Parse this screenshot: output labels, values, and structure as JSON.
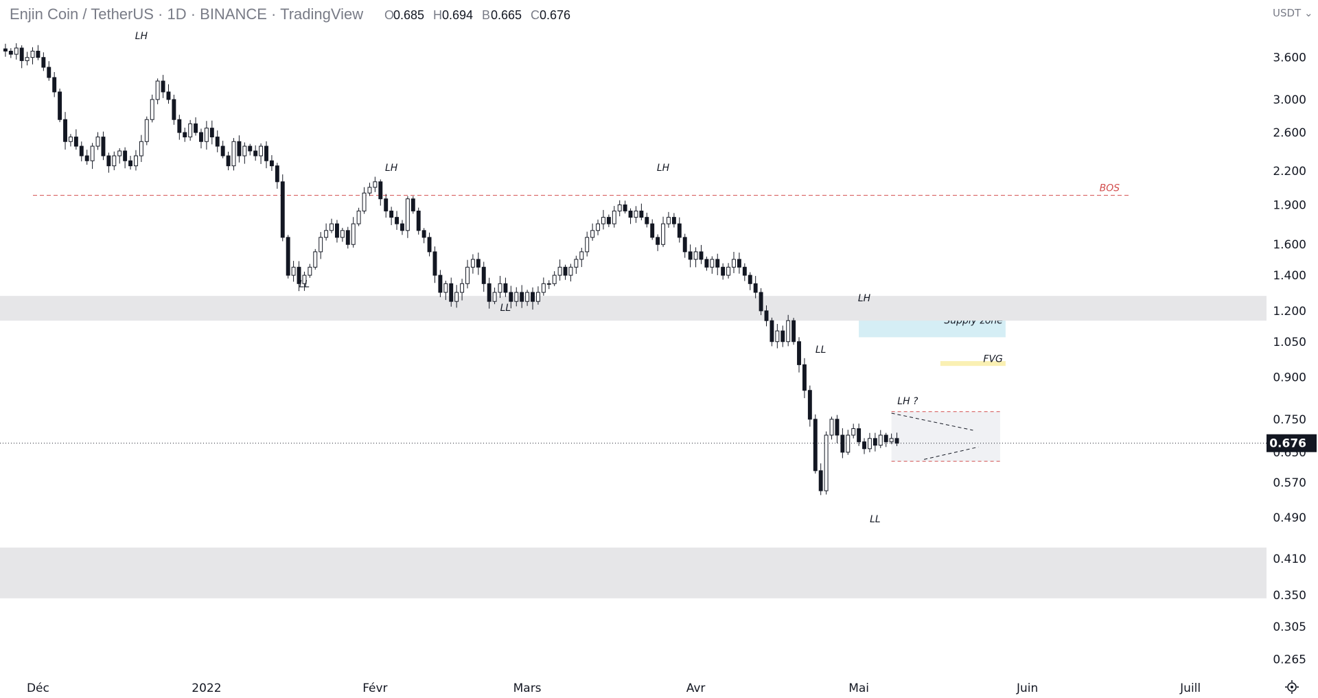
{
  "header": {
    "title": "Enjin Coin / TetherUS · 1D · BINANCE · TradingView",
    "ohlc": [
      {
        "key": "O",
        "value": "0.685"
      },
      {
        "key": "H",
        "value": "0.694"
      },
      {
        "key": "B",
        "value": "0.665"
      },
      {
        "key": "C",
        "value": "0.676"
      }
    ]
  },
  "currency_label": "USDT",
  "last_price_label": "0.676",
  "chart_data": {
    "type": "candlestick",
    "symbol": "ENJUSDT",
    "exchange": "BINANCE",
    "interval": "1D",
    "y_scale": "log",
    "ylim": [
      0.25,
      4.1
    ],
    "y_ticks": [
      {
        "label": "3.600",
        "value": 3.6
      },
      {
        "label": "3.000",
        "value": 3.0
      },
      {
        "label": "2.600",
        "value": 2.6
      },
      {
        "label": "2.200",
        "value": 2.2
      },
      {
        "label": "1.900",
        "value": 1.9
      },
      {
        "label": "1.600",
        "value": 1.6
      },
      {
        "label": "1.400",
        "value": 1.4
      },
      {
        "label": "1.200",
        "value": 1.2
      },
      {
        "label": "1.050",
        "value": 1.05
      },
      {
        "label": "0.900",
        "value": 0.9
      },
      {
        "label": "0.750",
        "value": 0.75
      },
      {
        "label": "0.650",
        "value": 0.65
      },
      {
        "label": "0.570",
        "value": 0.57
      },
      {
        "label": "0.490",
        "value": 0.49
      },
      {
        "label": "0.410",
        "value": 0.41
      },
      {
        "label": "0.350",
        "value": 0.35
      },
      {
        "label": "0.305",
        "value": 0.305
      },
      {
        "label": "0.265",
        "value": 0.265
      }
    ],
    "x_ticks": [
      {
        "label": "Déc",
        "index": 0
      },
      {
        "label": "2022",
        "index": 31
      },
      {
        "label": "Févr",
        "index": 62
      },
      {
        "label": "Mars",
        "index": 90
      },
      {
        "label": "Avr",
        "index": 121
      },
      {
        "label": "Mai",
        "index": 151
      },
      {
        "label": "Juin",
        "index": 182
      },
      {
        "label": "Juill",
        "index": 212
      }
    ],
    "x_range": [
      -7,
      226
    ],
    "start_index": -6,
    "close_series": [
      3.7,
      3.65,
      3.75,
      3.55,
      3.6,
      3.7,
      3.6,
      3.45,
      3.3,
      3.1,
      2.75,
      2.5,
      2.55,
      2.45,
      2.35,
      2.3,
      2.45,
      2.55,
      2.35,
      2.25,
      2.35,
      2.4,
      2.3,
      2.25,
      2.35,
      2.5,
      2.75,
      3.0,
      3.25,
      3.1,
      3.0,
      2.75,
      2.6,
      2.55,
      2.7,
      2.6,
      2.5,
      2.65,
      2.55,
      2.45,
      2.35,
      2.25,
      2.5,
      2.35,
      2.45,
      2.4,
      2.35,
      2.45,
      2.3,
      2.25,
      2.1,
      1.65,
      1.4,
      1.45,
      1.35,
      1.4,
      1.45,
      1.55,
      1.65,
      1.7,
      1.75,
      1.65,
      1.7,
      1.6,
      1.75,
      1.85,
      2.0,
      2.05,
      2.1,
      1.95,
      1.85,
      1.8,
      1.75,
      1.7,
      1.95,
      1.85,
      1.7,
      1.65,
      1.55,
      1.4,
      1.3,
      1.35,
      1.25,
      1.3,
      1.35,
      1.45,
      1.5,
      1.45,
      1.35,
      1.25,
      1.3,
      1.35,
      1.3,
      1.25,
      1.3,
      1.25,
      1.3,
      1.25,
      1.3,
      1.35,
      1.35,
      1.4,
      1.45,
      1.4,
      1.45,
      1.5,
      1.55,
      1.65,
      1.7,
      1.75,
      1.8,
      1.75,
      1.85,
      1.9,
      1.85,
      1.8,
      1.85,
      1.8,
      1.75,
      1.65,
      1.6,
      1.75,
      1.8,
      1.75,
      1.65,
      1.55,
      1.5,
      1.55,
      1.5,
      1.45,
      1.5,
      1.45,
      1.4,
      1.45,
      1.5,
      1.45,
      1.4,
      1.35,
      1.3,
      1.2,
      1.15,
      1.05,
      1.1,
      1.05,
      1.15,
      1.05,
      0.95,
      0.85,
      0.75,
      0.6,
      0.55,
      0.7,
      0.75,
      0.7,
      0.65,
      0.7,
      0.72,
      0.68,
      0.66,
      0.69,
      0.67,
      0.7,
      0.68,
      0.69,
      0.676
    ],
    "annotations": [
      {
        "label": "LH",
        "index": 19,
        "price": 3.9
      },
      {
        "label": "LH",
        "index": 65,
        "price": 2.2
      },
      {
        "label": "LH",
        "index": 115,
        "price": 2.2
      },
      {
        "label": "LH",
        "index": 152,
        "price": 1.25
      },
      {
        "label": "LH ?",
        "index": 160,
        "price": 0.8
      },
      {
        "label": "LL",
        "index": 49,
        "price": 1.33
      },
      {
        "label": "LL",
        "index": 86,
        "price": 1.2
      },
      {
        "label": "LL",
        "index": 144,
        "price": 1.0
      },
      {
        "label": "LL",
        "index": 154,
        "price": 0.48
      }
    ],
    "levels": [
      {
        "label": "BOS",
        "price": 1.98,
        "style": "dashed",
        "color": "#d24d4d"
      }
    ],
    "zones": [
      {
        "label": "Supply zone",
        "price_low": 1.07,
        "price_high": 1.19,
        "color": "#d5eef5"
      },
      {
        "label": "FVG",
        "price_low": 0.945,
        "price_high": 0.965,
        "color": "#faf0b3"
      },
      {
        "label": "",
        "price_low": 1.15,
        "price_high": 1.28,
        "color": "#e6e6e8"
      },
      {
        "label": "",
        "price_low": 0.345,
        "price_high": 0.43,
        "color": "#e6e6e8"
      }
    ],
    "last_price": 0.676,
    "colors": {
      "up": "#ffffff",
      "down": "#131722",
      "wick": "#131722",
      "bos": "#d24d4d",
      "zone_gray": "#e6e6e8",
      "supply": "#d5eef5",
      "fvg": "#faf0b3",
      "range_box": "#f0f1f4"
    }
  }
}
